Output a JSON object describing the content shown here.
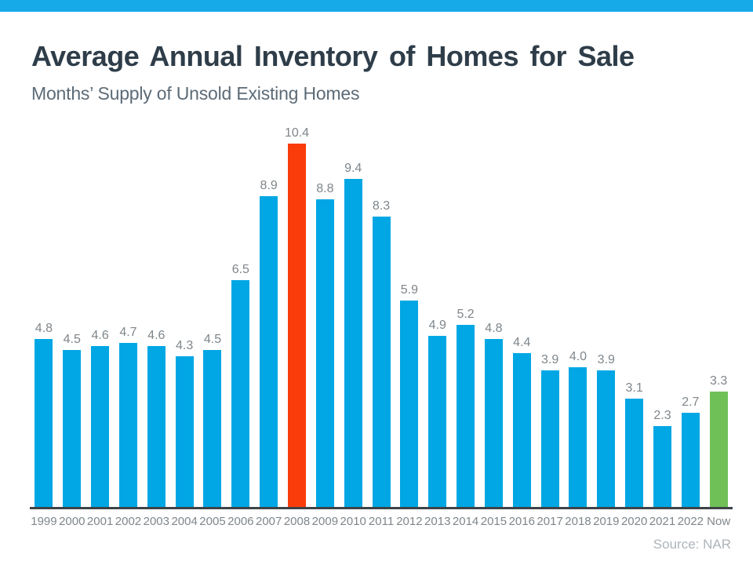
{
  "page": {
    "source_note": "Source: NAR"
  },
  "theme": {
    "band_color": "#16AAE9",
    "bar_color": "#00A7E4",
    "highlight_color": "#FA3C0A",
    "now_color": "#6FC157",
    "axis_color": "#3E4347",
    "title_color": "#2E3D49",
    "subtitle_color": "#5C6B77",
    "value_label_color": "#7F868B",
    "x_label_color": "#7F868B",
    "source_color": "#AEB4BA"
  },
  "chart_data": {
    "type": "bar",
    "title": "Average Annual Inventory of Homes for Sale",
    "subtitle": "Months’ Supply of Unsold Existing Homes",
    "categories": [
      "1999",
      "2000",
      "2001",
      "2002",
      "2003",
      "2004",
      "2005",
      "2006",
      "2007",
      "2008",
      "2009",
      "2010",
      "2011",
      "2012",
      "2013",
      "2014",
      "2015",
      "2016",
      "2017",
      "2018",
      "2019",
      "2020",
      "2021",
      "2022",
      "Now"
    ],
    "values": [
      4.8,
      4.5,
      4.6,
      4.7,
      4.6,
      4.3,
      4.5,
      6.5,
      8.9,
      10.4,
      8.8,
      9.4,
      8.3,
      5.9,
      4.9,
      5.2,
      4.8,
      4.4,
      3.9,
      4.0,
      3.9,
      3.1,
      2.3,
      2.7,
      3.3
    ],
    "highlights": {
      "2008": "highlight",
      "Now": "now"
    },
    "value_labels": true,
    "xlabel": "",
    "ylabel": "",
    "ylim": [
      0,
      10.4
    ],
    "grid": false,
    "legend": false
  }
}
